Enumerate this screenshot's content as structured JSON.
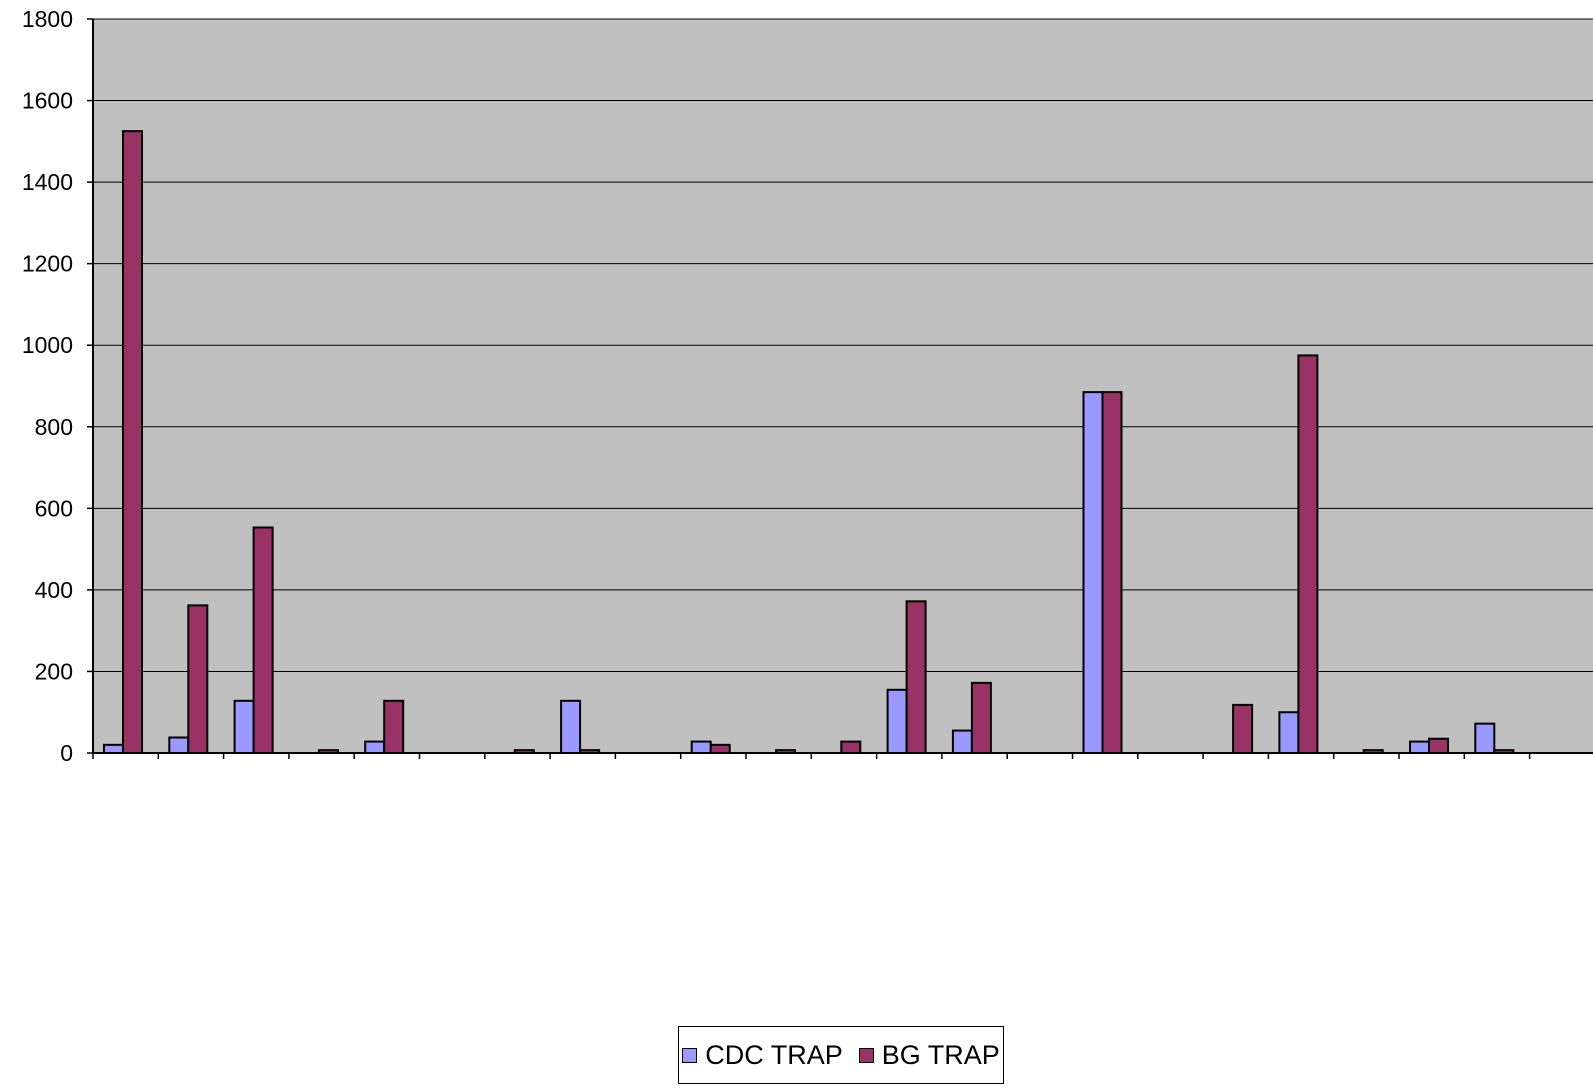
{
  "chart_data": {
    "type": "bar",
    "categories": [
      "",
      "",
      "",
      "",
      "",
      "",
      "",
      "",
      "",
      "",
      "",
      "",
      "",
      "",
      "",
      "",
      "",
      "",
      "",
      "",
      "",
      "",
      ""
    ],
    "series": [
      {
        "name": "CDC TRAP",
        "color": "#9999FF",
        "values": [
          20,
          38,
          128,
          0,
          28,
          0,
          0,
          128,
          0,
          28,
          0,
          0,
          155,
          55,
          0,
          885,
          0,
          0,
          100,
          0,
          28,
          72,
          0
        ]
      },
      {
        "name": "BG TRAP",
        "color": "#993366",
        "values": [
          1525,
          362,
          553,
          7,
          128,
          0,
          7,
          7,
          0,
          20,
          7,
          28,
          372,
          172,
          0,
          885,
          0,
          118,
          975,
          7,
          35,
          7,
          0
        ]
      }
    ],
    "ylim": [
      0,
      1800
    ],
    "yticks": [
      "0",
      "200",
      "400",
      "600",
      "800",
      "1000",
      "1200",
      "1400",
      "1600",
      "1800"
    ],
    "grid": true,
    "plot_background": "#C0C0C0",
    "legend_position": "bottom"
  }
}
